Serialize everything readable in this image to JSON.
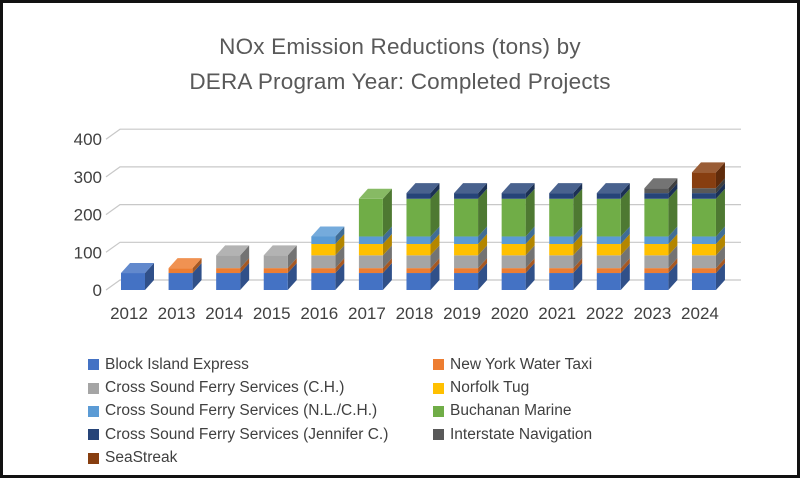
{
  "title": {
    "line1": "NOx Emission Reductions (tons) by",
    "line2": "DERA Program Year: Completed Projects"
  },
  "chart_data": {
    "type": "bar",
    "stacked": true,
    "effect_3d": true,
    "title": "NOx Emission Reductions (tons) by DERA Program Year: Completed Projects",
    "xlabel": "",
    "ylabel": "",
    "ylim": [
      0,
      400
    ],
    "yticks": [
      0,
      100,
      200,
      300,
      400
    ],
    "ytick_labels": [
      "0",
      "100",
      "200",
      "300",
      "400"
    ],
    "gridlines": "horizontal",
    "legend_position": "bottom",
    "legend_columns": 2,
    "categories": [
      "2012",
      "2013",
      "2014",
      "2015",
      "2016",
      "2017",
      "2018",
      "2019",
      "2020",
      "2021",
      "2022",
      "2023",
      "2024"
    ],
    "series": [
      {
        "name": "Block Island Express",
        "color": "#4472C4",
        "values": [
          45,
          45,
          45,
          45,
          45,
          45,
          45,
          45,
          45,
          45,
          45,
          45,
          45
        ]
      },
      {
        "name": "New York Water Taxi",
        "color": "#ED7D31",
        "values": [
          0,
          13,
          13,
          13,
          13,
          13,
          13,
          13,
          13,
          13,
          13,
          13,
          13
        ]
      },
      {
        "name": "Cross Sound Ferry Services (C.H.)",
        "color": "#A5A5A5",
        "values": [
          0,
          0,
          34,
          34,
          34,
          34,
          34,
          34,
          34,
          34,
          34,
          34,
          34
        ]
      },
      {
        "name": "Norfolk Tug",
        "color": "#FFC000",
        "values": [
          0,
          0,
          0,
          0,
          30,
          30,
          30,
          30,
          30,
          30,
          30,
          30,
          30
        ]
      },
      {
        "name": "Cross Sound Ferry Services (N.L./C.H.)",
        "color": "#5B9BD5",
        "values": [
          0,
          0,
          0,
          0,
          20,
          20,
          20,
          20,
          20,
          20,
          20,
          20,
          20
        ]
      },
      {
        "name": "Buchanan Marine",
        "color": "#70AD47",
        "values": [
          0,
          0,
          0,
          0,
          0,
          100,
          100,
          100,
          100,
          100,
          100,
          100,
          100
        ]
      },
      {
        "name": "Cross Sound Ferry Services (Jennifer C.)",
        "color": "#264478",
        "values": [
          0,
          0,
          0,
          0,
          0,
          0,
          15,
          15,
          15,
          15,
          15,
          15,
          15
        ]
      },
      {
        "name": "Interstate Navigation",
        "color": "#595959",
        "values": [
          0,
          0,
          0,
          0,
          0,
          0,
          0,
          0,
          0,
          0,
          0,
          13,
          13
        ]
      },
      {
        "name": "SeaStreak",
        "color": "#873E10",
        "values": [
          0,
          0,
          0,
          0,
          0,
          0,
          0,
          0,
          0,
          0,
          0,
          0,
          42
        ]
      }
    ],
    "totals_by_year": [
      45,
      58,
      92,
      92,
      142,
      242,
      257,
      257,
      257,
      257,
      257,
      270,
      312
    ],
    "colors": {
      "gridline": "#C8C8C8",
      "axis_text": "#404040",
      "title_text": "#595959",
      "frame_border": "#111111"
    }
  }
}
